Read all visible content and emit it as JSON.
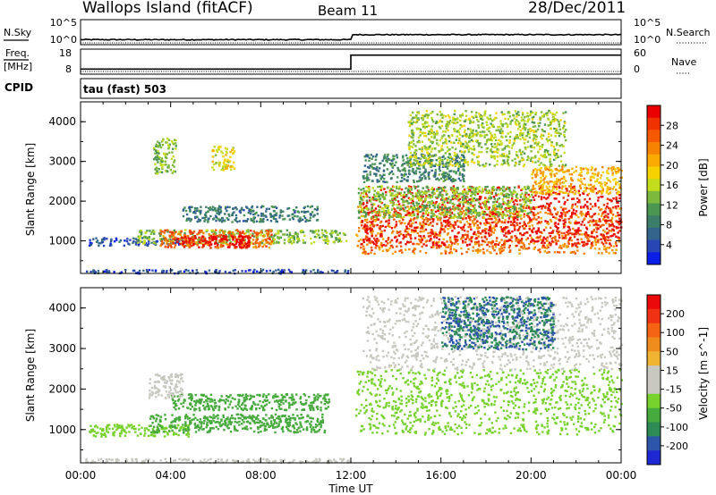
{
  "header": {
    "station": "Wallops Island (fitACF)",
    "beam": "Beam 11",
    "date": "28/Dec/2011"
  },
  "top_panels": {
    "nsky_label": "N.Sky",
    "nsearch_label": "N.Search",
    "nsky_ticks": [
      "10^5",
      "10^0"
    ],
    "nsearch_ticks": [
      "10^5",
      "10^0"
    ],
    "freq_label": "Freq.",
    "freq_unit": "[MHz]",
    "freq_ticks": [
      "18",
      "8"
    ],
    "nave_label": "Nave",
    "nave_ticks": [
      "60",
      "0"
    ],
    "cpid_label": "CPID",
    "cpid_value": "tau (fast) 503"
  },
  "axes": {
    "xlabel": "Time UT",
    "xticks": [
      "00:00",
      "04:00",
      "08:00",
      "12:00",
      "16:00",
      "20:00",
      "00:00"
    ],
    "ylabel": "Slant Range [km]",
    "yticks": [
      "1000",
      "2000",
      "3000",
      "4000"
    ]
  },
  "power_scale": {
    "label": "Power [dB]",
    "ticks": [
      "4",
      "8",
      "12",
      "16",
      "20",
      "24",
      "28"
    ],
    "colors": [
      "#0a1ee6",
      "#2846b4",
      "#32648c",
      "#3c7d69",
      "#4b9650",
      "#7db93c",
      "#c3dc1e",
      "#f5d200",
      "#faaa00",
      "#f58200",
      "#f55a00",
      "#f03200",
      "#eb0000"
    ]
  },
  "velocity_scale": {
    "label": "Velocity [m s^-1]",
    "ticks": [
      "200",
      "100",
      "50",
      "15",
      "-15",
      "-50",
      "-100",
      "-200"
    ],
    "colors": [
      "#1e28d2",
      "#2d55aa",
      "#2d8c55",
      "#46aa3c",
      "#78d22d",
      "#c8c8c0",
      "#c8c8c0",
      "#f0b432",
      "#f08c1e",
      "#f56414",
      "#f03214",
      "#eb0a0a"
    ]
  },
  "chart_data": {
    "type": "heatmap",
    "x_range_hours": [
      0,
      24
    ],
    "y_range_km": [
      180,
      4500
    ],
    "freq_mhz": [
      {
        "from": 0,
        "to": 12,
        "value": 10.2
      },
      {
        "from": 12,
        "to": 24,
        "value": 16.2
      }
    ],
    "nave_value": 0,
    "nsky_level": [
      {
        "from": 0,
        "to": 12,
        "value": 0.4
      },
      {
        "from": 12,
        "to": 24,
        "value": 0.8
      }
    ],
    "power_regions": [
      {
        "t": [
          0.3,
          4.8
        ],
        "r": [
          900,
          1100
        ],
        "power": 6
      },
      {
        "t": [
          2.5,
          11.8
        ],
        "r": [
          950,
          1300
        ],
        "power": 14
      },
      {
        "t": [
          3.5,
          8.5
        ],
        "r": [
          850,
          1300
        ],
        "power": 24
      },
      {
        "t": [
          4.2,
          7.5
        ],
        "r": [
          850,
          1150
        ],
        "power": 30
      },
      {
        "t": [
          4.5,
          10.5
        ],
        "r": [
          1500,
          1900
        ],
        "power": 9
      },
      {
        "t": [
          3.2,
          4.2
        ],
        "r": [
          2700,
          3600
        ],
        "power": 14
      },
      {
        "t": [
          5.8,
          6.8
        ],
        "r": [
          2800,
          3400
        ],
        "power": 17
      },
      {
        "t": [
          0.2,
          12
        ],
        "r": [
          200,
          300
        ],
        "power": 6
      },
      {
        "t": [
          12.2,
          24
        ],
        "r": [
          700,
          1900
        ],
        "power": 23
      },
      {
        "t": [
          12.4,
          24
        ],
        "r": [
          900,
          2400
        ],
        "power": 29
      },
      {
        "t": [
          12.3,
          20
        ],
        "r": [
          1600,
          2400
        ],
        "power": 14
      },
      {
        "t": [
          12.5,
          17
        ],
        "r": [
          2500,
          3200
        ],
        "power": 10
      },
      {
        "t": [
          14.5,
          21.5
        ],
        "r": [
          2900,
          4300
        ],
        "power": 15
      },
      {
        "t": [
          20,
          24
        ],
        "r": [
          2200,
          2900
        ],
        "power": 20
      }
    ],
    "velocity_regions": [
      {
        "t": [
          0.3,
          4.8
        ],
        "r": [
          850,
          1150
        ],
        "velocity": 0
      },
      {
        "t": [
          3.0,
          10.8
        ],
        "r": [
          950,
          1400
        ],
        "velocity": 40
      },
      {
        "t": [
          4.0,
          11.0
        ],
        "r": [
          1500,
          1900
        ],
        "velocity": 30
      },
      {
        "t": [
          3.0,
          4.5
        ],
        "r": [
          1800,
          2400
        ],
        "velocity": -40
      },
      {
        "t": [
          0.2,
          12
        ],
        "r": [
          200,
          300
        ],
        "velocity": -60
      },
      {
        "t": [
          12.2,
          24
        ],
        "r": [
          900,
          2500
        ],
        "velocity": 0
      },
      {
        "t": [
          12.5,
          24
        ],
        "r": [
          2500,
          4300
        ],
        "velocity": -20
      },
      {
        "t": [
          16,
          21
        ],
        "r": [
          3000,
          4300
        ],
        "velocity": 100
      }
    ]
  }
}
